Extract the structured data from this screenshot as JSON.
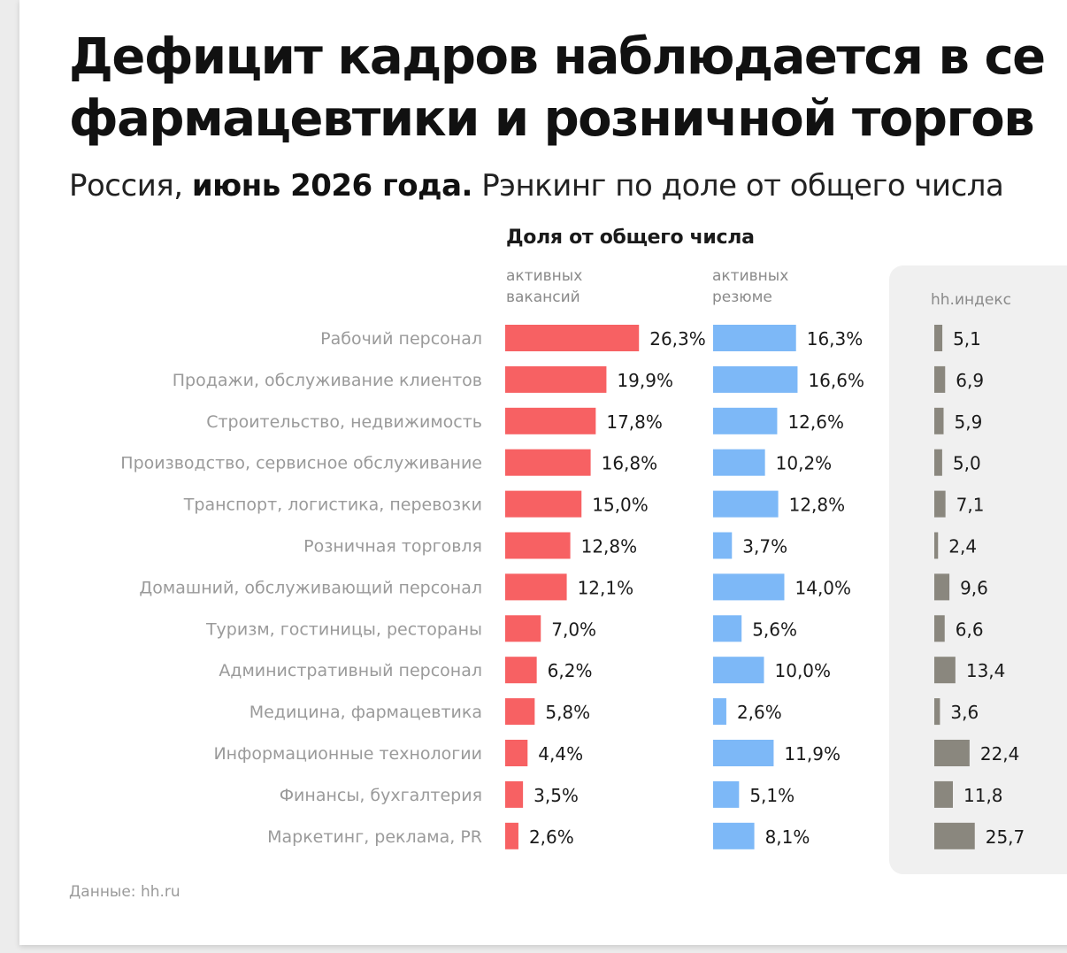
{
  "title_line1": "Дефицит кадров наблюдается в се",
  "title_line2": "фармацевтики и розничной торгов",
  "subtitle_part1": "Россия, ",
  "subtitle_part2": "июнь 2026 года.",
  "subtitle_part3": " Рэнкинг по доле от общего числа",
  "section_header": "Доля от общего числа",
  "col_vacancies": "активных\nвакансий",
  "col_resumes": "активных\nрезюме",
  "col_hh": "hh.индекс",
  "source": "Данные: hh.ru",
  "colors": {
    "vacancies": "#f76163",
    "resumes": "#7db8f7",
    "hh": "#8a877e",
    "category_text": "#9a9a9a",
    "value_text": "#1a1a1a"
  },
  "chart_data": {
    "type": "bar",
    "categories": [
      "Рабочий персонал",
      "Продажи, обслуживание клиентов",
      "Строительство, недвижимость",
      "Производство, сервисное обслуживание",
      "Транспорт, логистика, перевозки",
      "Розничная торговля",
      "Домашний, обслуживающий персонал",
      "Туризм, гостиницы, рестораны",
      "Административный персонал",
      "Медицина, фармацевтика",
      "Информационные технологии",
      "Финансы, бухгалтерия",
      "Маркетинг, реклама, PR"
    ],
    "series": [
      {
        "name": "активных вакансий",
        "values": [
          26.3,
          19.9,
          17.8,
          16.8,
          15.0,
          12.8,
          12.1,
          7.0,
          6.2,
          5.8,
          4.4,
          3.5,
          2.6
        ],
        "labels": [
          "26,3%",
          "19,9%",
          "17,8%",
          "16,8%",
          "15,0%",
          "12,8%",
          "12,1%",
          "7,0%",
          "6,2%",
          "5,8%",
          "4,4%",
          "3,5%",
          "2,6%"
        ]
      },
      {
        "name": "активных резюме",
        "values": [
          16.3,
          16.6,
          12.6,
          10.2,
          12.8,
          3.7,
          14.0,
          5.6,
          10.0,
          2.6,
          11.9,
          5.1,
          8.1
        ],
        "labels": [
          "16,3%",
          "16,6%",
          "12,6%",
          "10,2%",
          "12,8%",
          "3,7%",
          "14,0%",
          "5,6%",
          "10,0%",
          "2,6%",
          "11,9%",
          "5,1%",
          "8,1%"
        ]
      },
      {
        "name": "hh.индекс",
        "values": [
          5.1,
          6.9,
          5.9,
          5.0,
          7.1,
          2.4,
          9.6,
          6.6,
          13.4,
          3.6,
          22.4,
          11.8,
          25.7
        ],
        "labels": [
          "5,1",
          "6,9",
          "5,9",
          "5,0",
          "7,1",
          "2,4",
          "9,6",
          "6,6",
          "13,4",
          "3,6",
          "22,4",
          "11,8",
          "25,7"
        ]
      }
    ]
  }
}
